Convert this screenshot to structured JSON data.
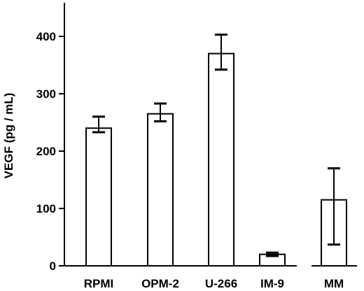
{
  "chart_data": {
    "type": "bar",
    "title": "",
    "xlabel": "",
    "ylabel": "VEGF (pg / mL)",
    "ylim": [
      0,
      460
    ],
    "yticks": [
      0,
      100,
      200,
      300,
      400
    ],
    "grid": false,
    "legend": "none",
    "categories": [
      "RPMI",
      "OPM-2",
      "U-266",
      "IM-9",
      "MM"
    ],
    "values": [
      240,
      265,
      370,
      20,
      115
    ],
    "error_upper": [
      260,
      283,
      403,
      23,
      170
    ],
    "error_lower": [
      233,
      252,
      342,
      17,
      37
    ],
    "bar_fill": "#ffffff",
    "bar_stroke": "#000000",
    "axis_groups": [
      [
        0,
        1,
        2,
        3
      ],
      [
        4
      ]
    ]
  }
}
